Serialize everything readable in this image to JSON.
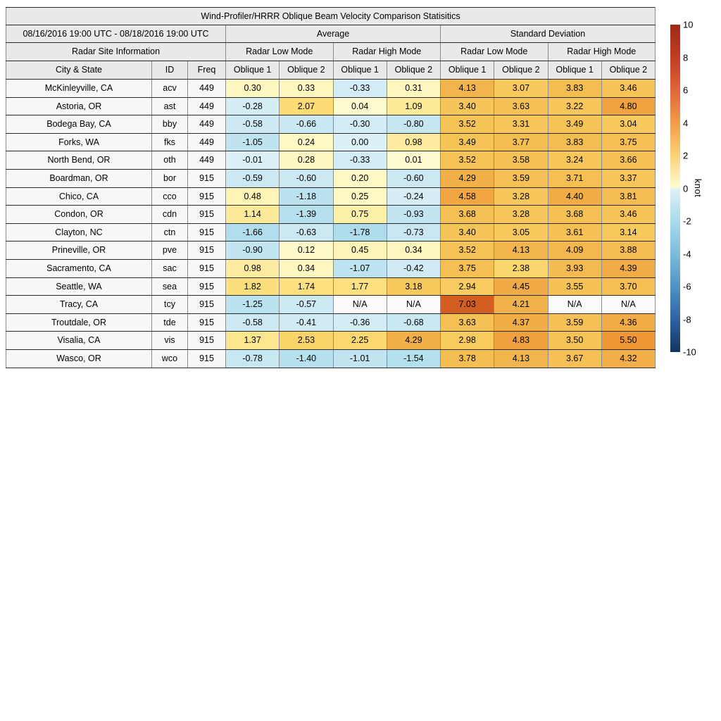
{
  "title": "Wind-Profiler/HRRR Oblique Beam Velocity Comparison Statisitics",
  "header": {
    "date_range": "08/16/2016 19:00 UTC - 08/18/2016 19:00 UTC",
    "group_average": "Average",
    "group_std": "Standard Deviation",
    "site_info": "Radar Site Information",
    "modes": [
      "Radar Low Mode",
      "Radar High Mode",
      "Radar Low Mode",
      "Radar High Mode"
    ],
    "cols": [
      "City & State",
      "ID",
      "Freq",
      "Oblique 1",
      "Oblique 2",
      "Oblique 1",
      "Oblique 2",
      "Oblique 1",
      "Oblique 2",
      "Oblique 1",
      "Oblique 2"
    ]
  },
  "chart_data": {
    "type": "table",
    "title": "Wind-Profiler/HRRR Oblique Beam Velocity Comparison Statisitics",
    "value_unit": "knot",
    "color_scale": {
      "min": -10,
      "max": 10,
      "colormap": "RdYlBu_r"
    },
    "value_columns": [
      "Avg Low Oblique 1",
      "Avg Low Oblique 2",
      "Avg High Oblique 1",
      "Avg High Oblique 2",
      "Std Low Oblique 1",
      "Std Low Oblique 2",
      "Std High Oblique 1",
      "Std High Oblique 2"
    ],
    "rows": [
      {
        "city": "McKinleyville, CA",
        "id": "acv",
        "freq": "449",
        "values": [
          "0.30",
          "0.33",
          "-0.33",
          "0.31",
          "4.13",
          "3.07",
          "3.83",
          "3.46"
        ]
      },
      {
        "city": "Astoria, OR",
        "id": "ast",
        "freq": "449",
        "values": [
          "-0.28",
          "2.07",
          "0.04",
          "1.09",
          "3.40",
          "3.63",
          "3.22",
          "4.80"
        ]
      },
      {
        "city": "Bodega Bay, CA",
        "id": "bby",
        "freq": "449",
        "values": [
          "-0.58",
          "-0.66",
          "-0.30",
          "-0.80",
          "3.52",
          "3.31",
          "3.49",
          "3.04"
        ]
      },
      {
        "city": "Forks, WA",
        "id": "fks",
        "freq": "449",
        "values": [
          "-1.05",
          "0.24",
          "0.00",
          "0.98",
          "3.49",
          "3.77",
          "3.83",
          "3.75"
        ]
      },
      {
        "city": "North Bend, OR",
        "id": "oth",
        "freq": "449",
        "values": [
          "-0.01",
          "0.28",
          "-0.33",
          "0.01",
          "3.52",
          "3.58",
          "3.24",
          "3.66"
        ]
      },
      {
        "city": "Boardman, OR",
        "id": "bor",
        "freq": "915",
        "values": [
          "-0.59",
          "-0.60",
          "0.20",
          "-0.60",
          "4.29",
          "3.59",
          "3.71",
          "3.37"
        ]
      },
      {
        "city": "Chico, CA",
        "id": "cco",
        "freq": "915",
        "values": [
          "0.48",
          "-1.18",
          "0.25",
          "-0.24",
          "4.58",
          "3.28",
          "4.40",
          "3.81"
        ]
      },
      {
        "city": "Condon, OR",
        "id": "cdn",
        "freq": "915",
        "values": [
          "1.14",
          "-1.39",
          "0.75",
          "-0.93",
          "3.68",
          "3.28",
          "3.68",
          "3.46"
        ]
      },
      {
        "city": "Clayton, NC",
        "id": "ctn",
        "freq": "915",
        "values": [
          "-1.66",
          "-0.63",
          "-1.78",
          "-0.73",
          "3.40",
          "3.05",
          "3.61",
          "3.14"
        ]
      },
      {
        "city": "Prineville, OR",
        "id": "pve",
        "freq": "915",
        "values": [
          "-0.90",
          "0.12",
          "0.45",
          "0.34",
          "3.52",
          "4.13",
          "4.09",
          "3.88"
        ]
      },
      {
        "city": "Sacramento, CA",
        "id": "sac",
        "freq": "915",
        "values": [
          "0.98",
          "0.34",
          "-1.07",
          "-0.42",
          "3.75",
          "2.38",
          "3.93",
          "4.39"
        ]
      },
      {
        "city": "Seattle, WA",
        "id": "sea",
        "freq": "915",
        "values": [
          "1.82",
          "1.74",
          "1.77",
          "3.18",
          "2.94",
          "4.45",
          "3.55",
          "3.70"
        ]
      },
      {
        "city": "Tracy, CA",
        "id": "tcy",
        "freq": "915",
        "values": [
          "-1.25",
          "-0.57",
          "N/A",
          "N/A",
          "7.03",
          "4.21",
          "N/A",
          "N/A"
        ]
      },
      {
        "city": "Troutdale, OR",
        "id": "tde",
        "freq": "915",
        "values": [
          "-0.58",
          "-0.41",
          "-0.36",
          "-0.68",
          "3.63",
          "4.37",
          "3.59",
          "4.36"
        ]
      },
      {
        "city": "Visalia, CA",
        "id": "vis",
        "freq": "915",
        "values": [
          "1.37",
          "2.53",
          "2.25",
          "4.29",
          "2.98",
          "4.83",
          "3.50",
          "5.50"
        ]
      },
      {
        "city": "Wasco, OR",
        "id": "wco",
        "freq": "915",
        "values": [
          "-0.78",
          "-1.40",
          "-1.01",
          "-1.54",
          "3.78",
          "4.13",
          "3.67",
          "4.32"
        ]
      }
    ]
  },
  "colorbar": {
    "label": "knot",
    "ticks": [
      "10",
      "8",
      "6",
      "4",
      "2",
      "0",
      "-2",
      "-4",
      "-6",
      "-8",
      "-10"
    ],
    "gradient": [
      "#9e2a15 0%",
      "#c23c23 10%",
      "#e0653a 20%",
      "#f29c49 30%",
      "#fbd276 40%",
      "#fefbd0 49.5%",
      "#dcf0f7 50.5%",
      "#a9daea 60%",
      "#7cbcdb 70%",
      "#4f93c4 80%",
      "#2f62a4 90%",
      "#12355e 100%"
    ]
  },
  "colormap": {
    "na_color": "#fbfbfb",
    "neg": [
      [
        -10,
        "#313695"
      ],
      [
        -8,
        "#3a67ad"
      ],
      [
        -6,
        "#5e94c5"
      ],
      [
        -4,
        "#8ec8e2"
      ],
      [
        -2,
        "#a9daea"
      ],
      [
        -1,
        "#c0e4f0"
      ],
      [
        -0.5,
        "#cfeaf4"
      ],
      [
        0,
        "#dcf0f7"
      ]
    ],
    "pos": [
      [
        0,
        "#fefbd2"
      ],
      [
        0.5,
        "#fdf4b4"
      ],
      [
        1,
        "#fdec9e"
      ],
      [
        1.5,
        "#fce489"
      ],
      [
        2,
        "#fcdc76"
      ],
      [
        2.5,
        "#fad569"
      ],
      [
        3,
        "#f8cb5f"
      ],
      [
        3.5,
        "#f6c357"
      ],
      [
        4,
        "#f3ba50"
      ],
      [
        4.5,
        "#f1a844"
      ],
      [
        5,
        "#ef9e3a"
      ],
      [
        5.5,
        "#ee9734"
      ],
      [
        6,
        "#e8882e"
      ],
      [
        7,
        "#d45f21"
      ],
      [
        8,
        "#c24317"
      ],
      [
        10,
        "#a50026"
      ]
    ]
  }
}
